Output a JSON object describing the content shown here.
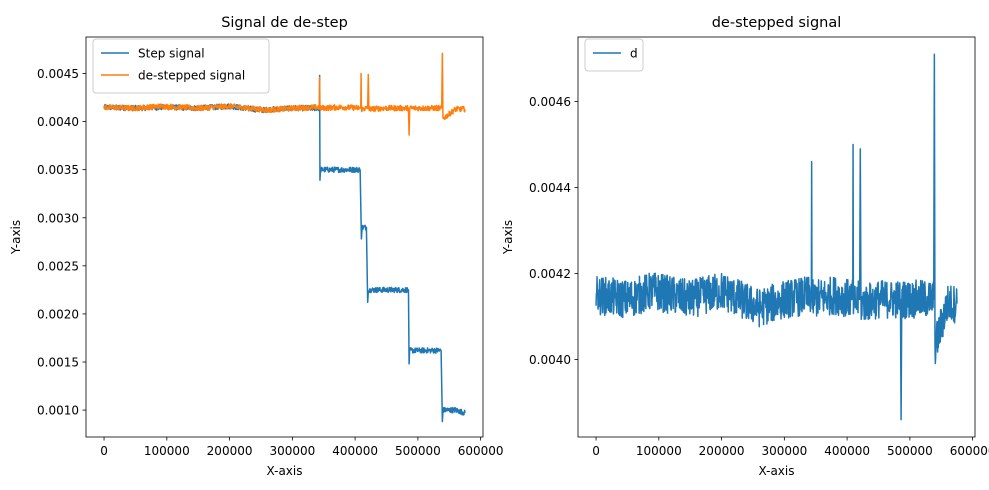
{
  "chart_data": [
    {
      "type": "line",
      "title": "Signal de de-step",
      "xlabel": "X-axis",
      "ylabel": "Y-axis",
      "xlim": [
        -28750,
        603750
      ],
      "ylim": [
        0.00072,
        0.00488
      ],
      "xticks": [
        0,
        100000,
        200000,
        300000,
        400000,
        500000,
        600000
      ],
      "xtick_labels": [
        "0",
        "100000",
        "200000",
        "300000",
        "400000",
        "500000",
        "600000"
      ],
      "yticks": [
        0.001,
        0.0015,
        0.002,
        0.0025,
        0.003,
        0.0035,
        0.004,
        0.0045
      ],
      "ytick_labels": [
        "0.0010",
        "0.0015",
        "0.0020",
        "0.0025",
        "0.0030",
        "0.0035",
        "0.0040",
        "0.0045"
      ],
      "legend_position": "top-left",
      "grid": false,
      "series": [
        {
          "name": "Step signal",
          "color": "#1f77b4",
          "x": [
            0,
            50000,
            100000,
            150000,
            200000,
            250000,
            300000,
            343000,
            343500,
            344000,
            345000,
            380000,
            408000,
            410000,
            411000,
            418000,
            420000,
            421000,
            450000,
            485000,
            486000,
            487000,
            500000,
            537000,
            539000,
            540000,
            560000,
            575000
          ],
          "y": [
            0.00415,
            0.00414,
            0.00415,
            0.00414,
            0.00416,
            0.00412,
            0.00414,
            0.00414,
            0.00448,
            0.00339,
            0.0035,
            0.0035,
            0.0035,
            0.00278,
            0.0029,
            0.0029,
            0.00212,
            0.00225,
            0.00225,
            0.00225,
            0.00148,
            0.00162,
            0.00162,
            0.00162,
            0.00088,
            0.001,
            0.001,
            0.00097
          ]
        },
        {
          "name": "de-stepped signal",
          "color": "#ff7f0e",
          "x": [
            0,
            50000,
            90000,
            150000,
            200000,
            260000,
            300000,
            343000,
            343500,
            344000,
            380000,
            409000,
            409500,
            410000,
            420000,
            421000,
            422000,
            450000,
            485000,
            486000,
            487000,
            520000,
            538000,
            539000,
            540000,
            560000,
            575000
          ],
          "y": [
            0.00415,
            0.00414,
            0.00416,
            0.00414,
            0.00416,
            0.00412,
            0.00414,
            0.00415,
            0.00446,
            0.00414,
            0.00415,
            0.00414,
            0.0045,
            0.00413,
            0.00414,
            0.00449,
            0.00413,
            0.00414,
            0.00414,
            0.00386,
            0.00414,
            0.00414,
            0.00414,
            0.00471,
            0.00403,
            0.00413,
            0.00413
          ]
        }
      ]
    },
    {
      "type": "line",
      "title": "de-stepped signal",
      "xlabel": "X-axis",
      "ylabel": "Y-axis",
      "xlim": [
        -28750,
        603750
      ],
      "ylim": [
        0.00382,
        0.00475
      ],
      "xticks": [
        0,
        100000,
        200000,
        300000,
        400000,
        500000,
        600000
      ],
      "xtick_labels": [
        "0",
        "100000",
        "200000",
        "300000",
        "400000",
        "500000",
        "600000"
      ],
      "yticks": [
        0.004,
        0.0042,
        0.0044,
        0.0046
      ],
      "ytick_labels": [
        "0.0040",
        "0.0042",
        "0.0044",
        "0.0046"
      ],
      "legend_position": "top-left",
      "grid": false,
      "series": [
        {
          "name": "d",
          "color": "#1f77b4",
          "x": [
            0,
            50000,
            90000,
            150000,
            200000,
            260000,
            300000,
            343000,
            343500,
            344000,
            380000,
            409000,
            409500,
            410000,
            420000,
            421000,
            422000,
            450000,
            485000,
            486000,
            487000,
            520000,
            538000,
            539000,
            540000,
            560000,
            575000
          ],
          "y": [
            0.00415,
            0.00414,
            0.00416,
            0.00414,
            0.00416,
            0.00412,
            0.00414,
            0.00415,
            0.00446,
            0.00414,
            0.00415,
            0.00414,
            0.0045,
            0.00413,
            0.00414,
            0.00449,
            0.00413,
            0.00414,
            0.00414,
            0.00386,
            0.00414,
            0.00414,
            0.00414,
            0.00471,
            0.00403,
            0.00413,
            0.00413
          ]
        }
      ]
    }
  ]
}
